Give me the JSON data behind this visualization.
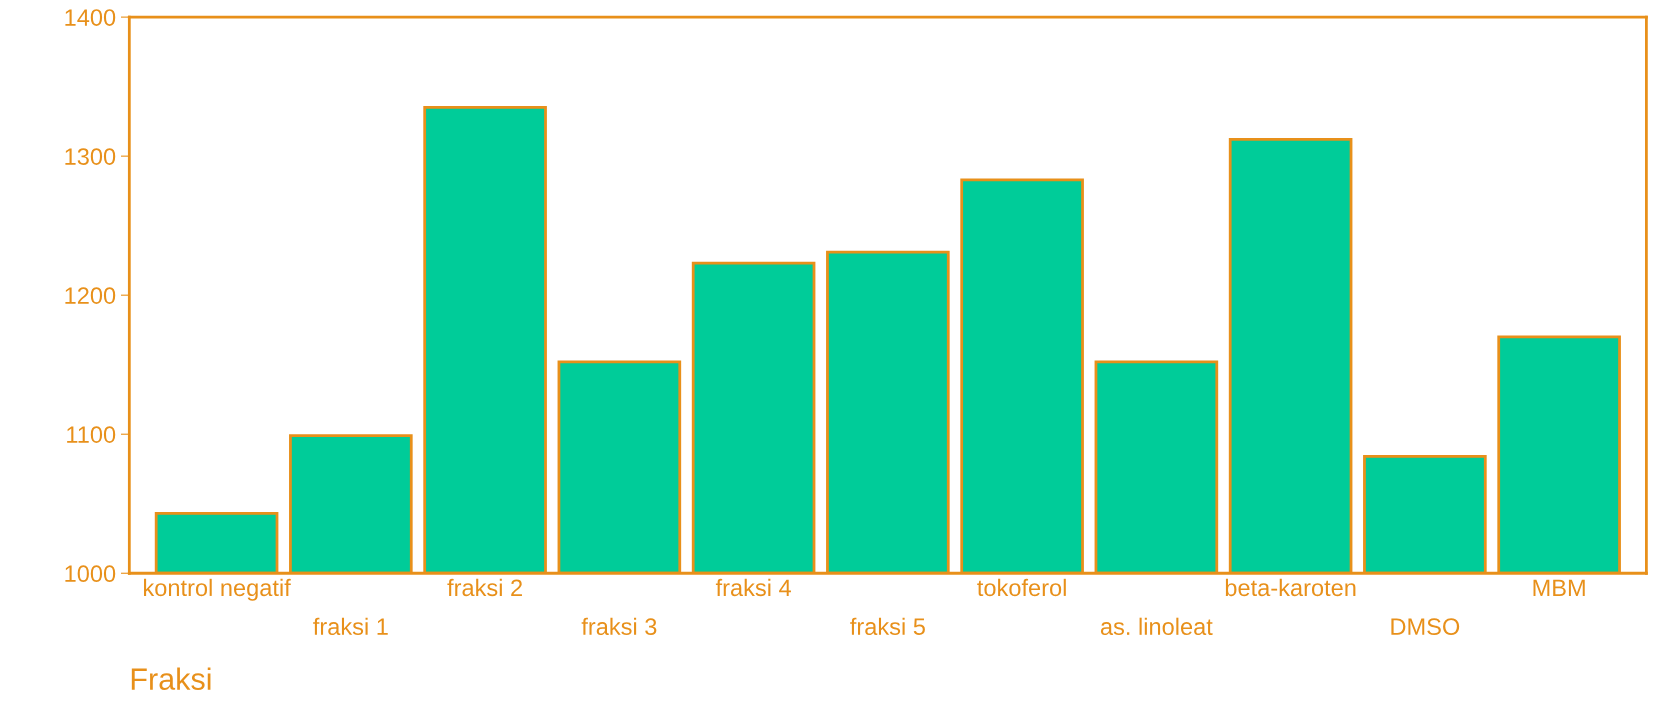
{
  "chart_data": {
    "type": "bar",
    "xlabel": "Fraksi",
    "categories": [
      "kontrol negatif",
      "fraksi 1",
      "fraksi 2",
      "fraksi 3",
      "fraksi 4",
      "fraksi 5",
      "tokoferol",
      "as. linoleat",
      "beta-karoten",
      "DMSO",
      "MBM"
    ],
    "values": [
      1043,
      1099,
      1335,
      1152,
      1223,
      1231,
      1283,
      1152,
      1312,
      1084,
      1170
    ],
    "color": "#00cc99",
    "ylim": [
      1000,
      1400
    ],
    "yticks": [
      1000,
      1100,
      1200,
      1300,
      1400
    ],
    "grid": false,
    "legend": false
  }
}
